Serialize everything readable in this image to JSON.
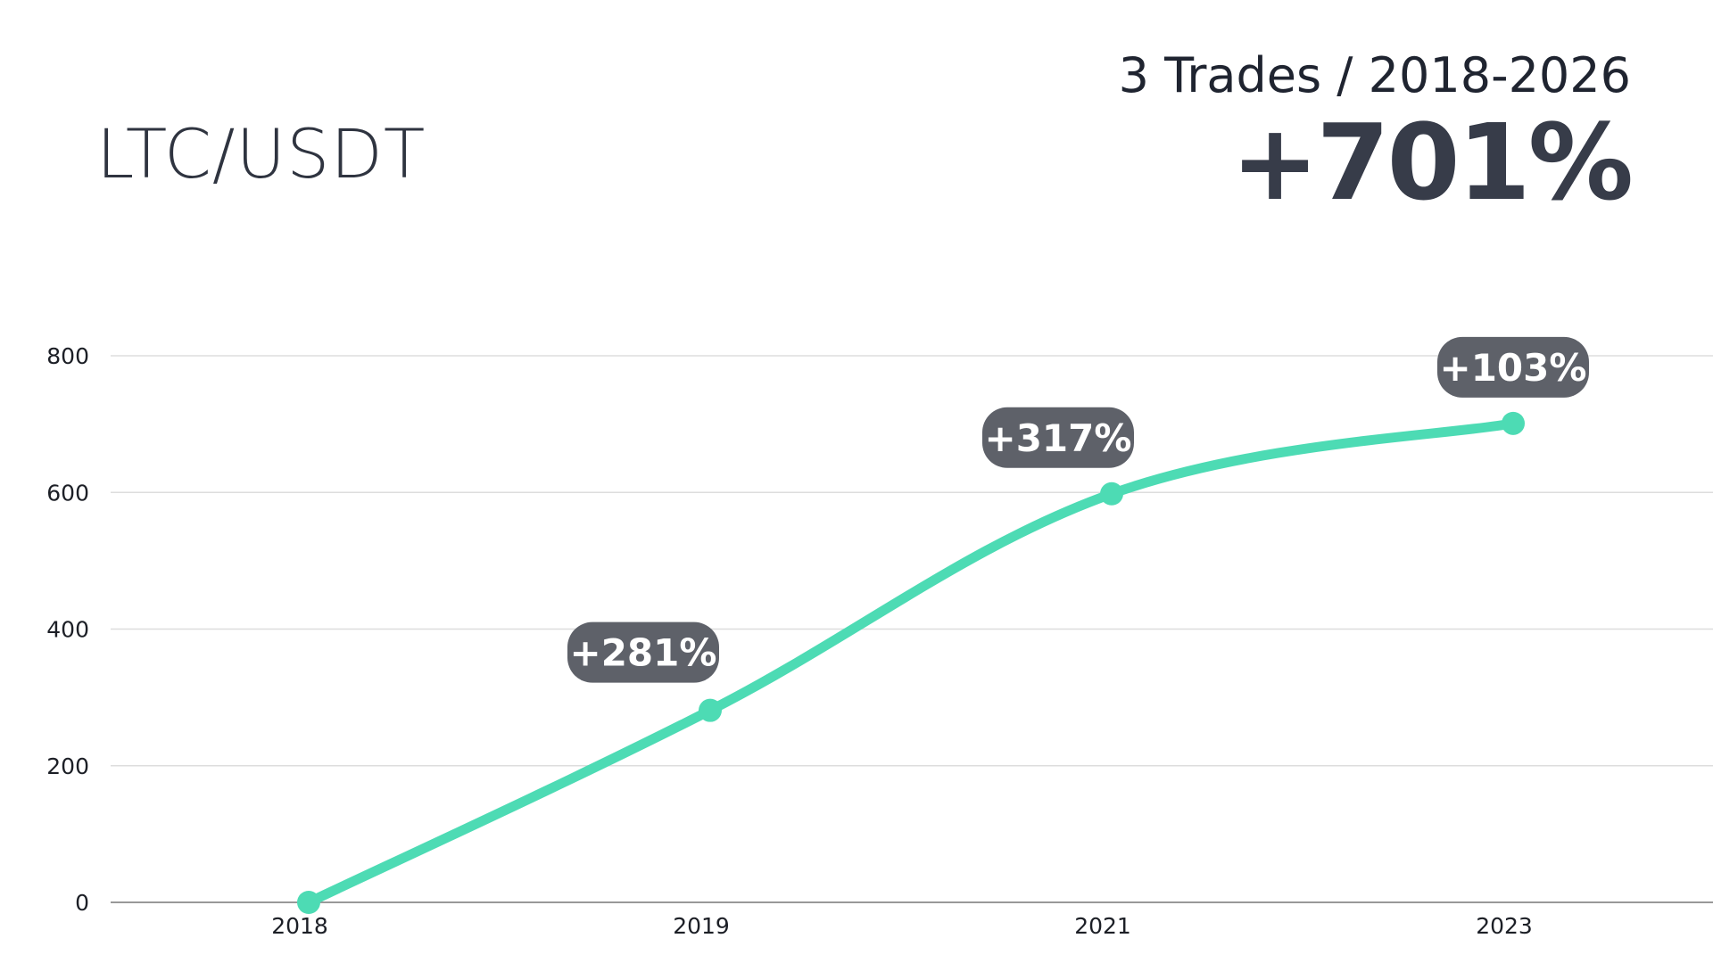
{
  "header": {
    "pair": "LTC/USDT",
    "trades_summary": "3 Trades / 2018-2026",
    "total_return": "+701%"
  },
  "colors": {
    "line": "#4ddbb4",
    "badge": "#5e6169",
    "grid": "#dddddd",
    "axis": "#999999"
  },
  "chart_data": {
    "type": "line",
    "categories": [
      "2018",
      "2019",
      "2021",
      "2023"
    ],
    "values": [
      0,
      281,
      598,
      701
    ],
    "point_labels": [
      "",
      "+281%",
      "+317%",
      "+103%"
    ],
    "yticks": [
      0,
      200,
      400,
      600,
      800
    ],
    "ylim": [
      0,
      800
    ],
    "grid": true,
    "title": "",
    "xlabel": "",
    "ylabel": ""
  }
}
